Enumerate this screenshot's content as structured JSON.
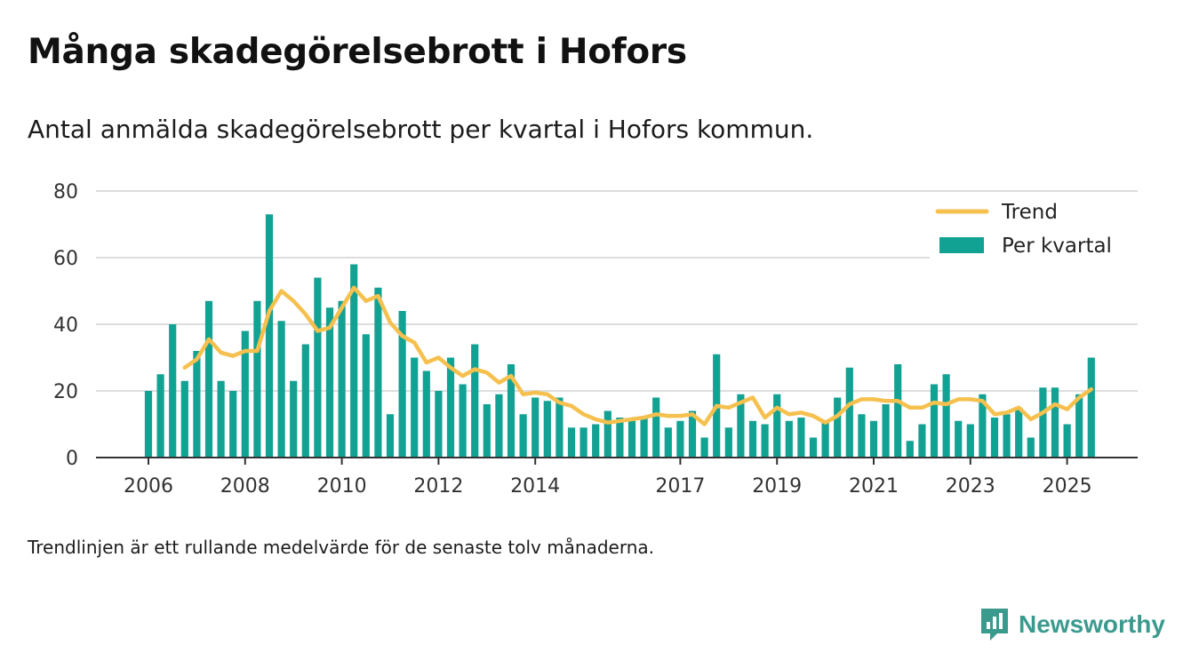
{
  "header": {
    "title": "Många skadegörelsebrott i Hofors",
    "subtitle": "Antal anmälda skadegörelsebrott per kvartal i Hofors kommun."
  },
  "footer": {
    "note": "Trendlinjen är ett rullande medelvärde för de senaste tolv månaderna.",
    "brand": "Newsworthy"
  },
  "colors": {
    "bar": "#12a293",
    "trend": "#f5c04e",
    "grid": "#dddddd",
    "axis": "#333333",
    "brand": "#3b9a8e"
  },
  "chart_data": {
    "type": "bar",
    "title": "Många skadegörelsebrott i Hofors",
    "xlabel": "",
    "ylabel": "",
    "ylim": [
      0,
      80
    ],
    "yticks": [
      0,
      20,
      40,
      60,
      80
    ],
    "grid": true,
    "legend_position": "top-right",
    "x_tick_labels": [
      {
        "label": "2006",
        "index": 0
      },
      {
        "label": "2008",
        "index": 8
      },
      {
        "label": "2010",
        "index": 16
      },
      {
        "label": "2012",
        "index": 24
      },
      {
        "label": "2014",
        "index": 32
      },
      {
        "label": "2017",
        "index": 44
      },
      {
        "label": "2019",
        "index": 52
      },
      {
        "label": "2021",
        "index": 60
      },
      {
        "label": "2023",
        "index": 68
      },
      {
        "label": "2025",
        "index": 76
      }
    ],
    "series": [
      {
        "name": "Per kvartal",
        "type": "bar",
        "values": [
          20,
          25,
          40,
          23,
          32,
          47,
          23,
          20,
          38,
          47,
          73,
          41,
          23,
          34,
          54,
          45,
          47,
          58,
          37,
          51,
          13,
          44,
          30,
          26,
          20,
          30,
          22,
          34,
          16,
          19,
          28,
          13,
          18,
          17,
          18,
          9,
          9,
          10,
          14,
          12,
          11,
          12,
          18,
          9,
          11,
          14,
          6,
          31,
          9,
          19,
          11,
          10,
          19,
          11,
          12,
          6,
          11,
          18,
          27,
          13,
          11,
          16,
          28,
          5,
          10,
          22,
          25,
          11,
          10,
          19,
          12,
          13,
          15,
          6,
          21,
          21,
          10,
          19,
          30
        ]
      },
      {
        "name": "Trend",
        "type": "line",
        "values": [
          null,
          null,
          null,
          27,
          29.5,
          35.5,
          31.5,
          30.5,
          32,
          32,
          44,
          50,
          47,
          43,
          38,
          39,
          45,
          51,
          47,
          48.5,
          40.5,
          36.5,
          34.5,
          28.5,
          30,
          27,
          24.5,
          26.5,
          25.5,
          22.5,
          24.5,
          19,
          19.5,
          19,
          16.5,
          15.5,
          13,
          11.5,
          10.5,
          11,
          11.5,
          12,
          13,
          12.5,
          12.5,
          13,
          10,
          15.5,
          15,
          16.5,
          18,
          12,
          15,
          13,
          13.5,
          12.5,
          10.5,
          12.5,
          16,
          17.5,
          17.5,
          17,
          17,
          15,
          15,
          16.5,
          16,
          17.5,
          17.5,
          17,
          13,
          13.5,
          15,
          11.5,
          13.5,
          16,
          14.5,
          18,
          20.5
        ]
      }
    ]
  }
}
